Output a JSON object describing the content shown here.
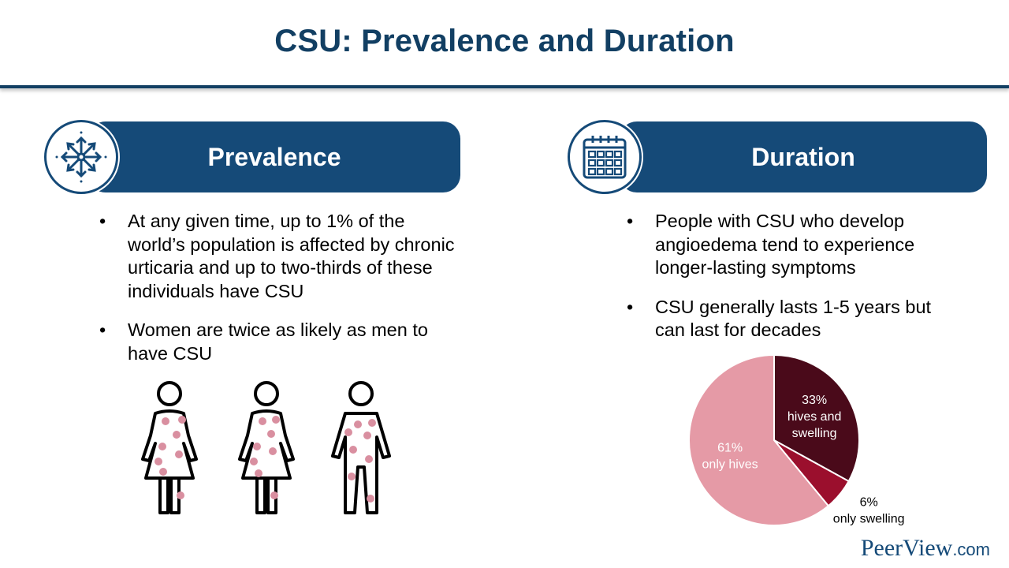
{
  "title": "CSU: Prevalence and Duration",
  "prevalence": {
    "heading": "Prevalence",
    "icon": "arrows-outward-icon",
    "bullets": [
      "At any given time, up to 1% of the world’s population is affected by chronic urticaria and up to two-thirds of these individuals have CSU",
      "Women are twice as likely as men to have CSU"
    ]
  },
  "duration": {
    "heading": "Duration",
    "icon": "calendar-icon",
    "bullets": [
      "People with CSU who develop angioedema tend to experience longer-lasting symptoms",
      "CSU generally lasts 1-5 years but can last for decades"
    ]
  },
  "figures": {
    "items": [
      "woman-figure-icon",
      "woman-figure-icon",
      "man-figure-icon"
    ],
    "dot_color": "#d98fa0"
  },
  "chart_data": {
    "type": "pie",
    "slices": [
      {
        "label_pct": "33%",
        "label": "hives and swelling",
        "value": 33,
        "color": "#4a0a1a"
      },
      {
        "label_pct": "6%",
        "label": "only swelling",
        "value": 6,
        "color": "#9b0f2d"
      },
      {
        "label_pct": "61%",
        "label": "only hives",
        "value": 61,
        "color": "#e59aa6"
      }
    ]
  },
  "logo": {
    "main": "PeerView",
    "suffix": ".com"
  }
}
